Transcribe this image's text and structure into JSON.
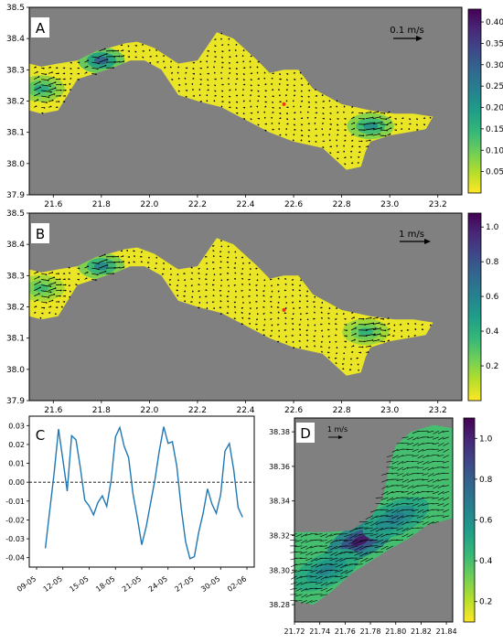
{
  "colors": {
    "land": "#808080",
    "frame": "#000000",
    "marker": "#ff2a2a",
    "line": "#1f77b4",
    "zero_line": "#000000",
    "colormap": [
      "#fde725",
      "#b5de2b",
      "#6ece58",
      "#35b779",
      "#1f9e89",
      "#26828e",
      "#31688e",
      "#3e4989",
      "#482878",
      "#440154"
    ]
  },
  "chart_data": [
    {
      "panel": "A",
      "type": "heatmap",
      "title": "",
      "xlabel": "",
      "ylabel": "",
      "xlim": [
        21.5,
        23.3
      ],
      "ylim": [
        37.9,
        38.5
      ],
      "x_ticks": [
        "21.6",
        "21.8",
        "22.0",
        "22.2",
        "22.4",
        "22.6",
        "22.8",
        "23.0",
        "23.2"
      ],
      "y_ticks": [
        "37.9",
        "38.0",
        "38.1",
        "38.2",
        "38.3",
        "38.4",
        "38.5"
      ],
      "quiver_key": "0.1 m/s",
      "colorbar": {
        "min": 0.0,
        "max": 0.43,
        "ticks": [
          "0.05",
          "0.10",
          "0.15",
          "0.20",
          "0.25",
          "0.30",
          "0.35",
          "0.40"
        ]
      },
      "marker_point": [
        22.56,
        38.19
      ],
      "hotspots": [
        {
          "lon": 21.8,
          "lat": 38.33,
          "value": 0.3
        },
        {
          "lon": 21.55,
          "lat": 38.24,
          "value": 0.18
        },
        {
          "lon": 22.92,
          "lat": 38.12,
          "value": 0.22
        }
      ],
      "grid": false
    },
    {
      "panel": "B",
      "type": "heatmap",
      "title": "",
      "xlabel": "",
      "ylabel": "",
      "xlim": [
        21.5,
        23.3
      ],
      "ylim": [
        37.9,
        38.5
      ],
      "x_ticks": [
        "21.6",
        "21.8",
        "22.0",
        "22.2",
        "22.4",
        "22.6",
        "22.8",
        "23.0",
        "23.2"
      ],
      "y_ticks": [
        "37.9",
        "38.0",
        "38.1",
        "38.2",
        "38.3",
        "38.4",
        "38.5"
      ],
      "quiver_key": "1 m/s",
      "colorbar": {
        "min": 0.0,
        "max": 1.08,
        "ticks": [
          "0.2",
          "0.4",
          "0.6",
          "0.8",
          "1.0"
        ]
      },
      "marker_point": [
        22.56,
        38.19
      ],
      "hotspots": [
        {
          "lon": 21.8,
          "lat": 38.33,
          "value": 0.6
        },
        {
          "lon": 21.55,
          "lat": 38.26,
          "value": 0.35
        },
        {
          "lon": 22.9,
          "lat": 38.12,
          "value": 0.4
        }
      ],
      "grid": false
    },
    {
      "panel": "C",
      "type": "line",
      "title": "",
      "xlabel": "",
      "ylabel": "",
      "x_ticks": [
        "09-05",
        "12-05",
        "15-05",
        "18-05",
        "21-05",
        "24-05",
        "27-05",
        "30-05",
        "02-06"
      ],
      "y_ticks": [
        "-0.04",
        "-0.03",
        "-0.02",
        "-0.01",
        "0.00",
        "0.01",
        "0.02",
        "0.03"
      ],
      "ylim": [
        -0.045,
        0.035
      ],
      "x_day_range": [
        "09-05",
        "02-06"
      ],
      "series": [
        {
          "x": [
            "10-05",
            "10-05 12h",
            "11-05",
            "11-05 12h",
            "12-05",
            "12-05 12h",
            "13-05",
            "13-05 12h",
            "14-05",
            "14-05 12h",
            "15-05",
            "15-05 12h",
            "16-05",
            "16-05 12h",
            "17-05",
            "17-05 12h",
            "18-05",
            "18-05 12h",
            "19-05",
            "19-05 12h",
            "20-05",
            "20-05 12h",
            "21-05",
            "21-05 12h",
            "22-05",
            "22-05 12h",
            "23-05",
            "23-05 12h",
            "24-05",
            "24-05 12h",
            "25-05",
            "25-05 12h",
            "26-05",
            "26-05 12h",
            "27-05",
            "27-05 12h",
            "28-05",
            "28-05 12h",
            "29-05",
            "29-05 12h",
            "30-05",
            "30-05 12h",
            "31-05",
            "31-05 12h",
            "01-06",
            "01-06 12h"
          ],
          "values": [
            -0.035,
            -0.015,
            0.005,
            0.028,
            0.012,
            -0.005,
            0.025,
            0.022,
            0.008,
            -0.01,
            -0.012,
            -0.018,
            -0.01,
            -0.008,
            -0.012,
            0.0,
            0.025,
            0.028,
            0.02,
            0.012,
            -0.005,
            -0.02,
            -0.032,
            -0.025,
            -0.01,
            0.0,
            0.018,
            0.028,
            0.022,
            0.02,
            0.01,
            -0.015,
            -0.03,
            -0.042,
            -0.038,
            -0.028,
            -0.015,
            -0.005,
            -0.01,
            -0.018,
            -0.005,
            0.015,
            0.022,
            0.005,
            -0.012,
            -0.02
          ]
        }
      ],
      "zero_line": 0.0,
      "grid": false
    },
    {
      "panel": "D",
      "type": "heatmap",
      "title": "",
      "xlabel": "",
      "ylabel": "",
      "xlim": [
        21.72,
        21.845
      ],
      "ylim": [
        38.27,
        38.388
      ],
      "x_ticks": [
        "21.72",
        "21.74",
        "21.76",
        "21.78",
        "21.80",
        "21.82",
        "21.84"
      ],
      "y_ticks": [
        "38.28",
        "38.30",
        "38.32",
        "38.34",
        "38.36",
        "38.38"
      ],
      "quiver_key": "1 m/s",
      "colorbar": {
        "min": 0.1,
        "max": 1.1,
        "ticks": [
          "0.2",
          "0.4",
          "0.6",
          "0.8",
          "1.0"
        ]
      },
      "hotspots": [
        {
          "lon": 21.772,
          "lat": 38.317,
          "value": 1.05
        },
        {
          "lon": 21.8,
          "lat": 38.33,
          "value": 0.7
        },
        {
          "lon": 21.745,
          "lat": 38.3,
          "value": 0.65
        }
      ],
      "grid": false
    }
  ]
}
